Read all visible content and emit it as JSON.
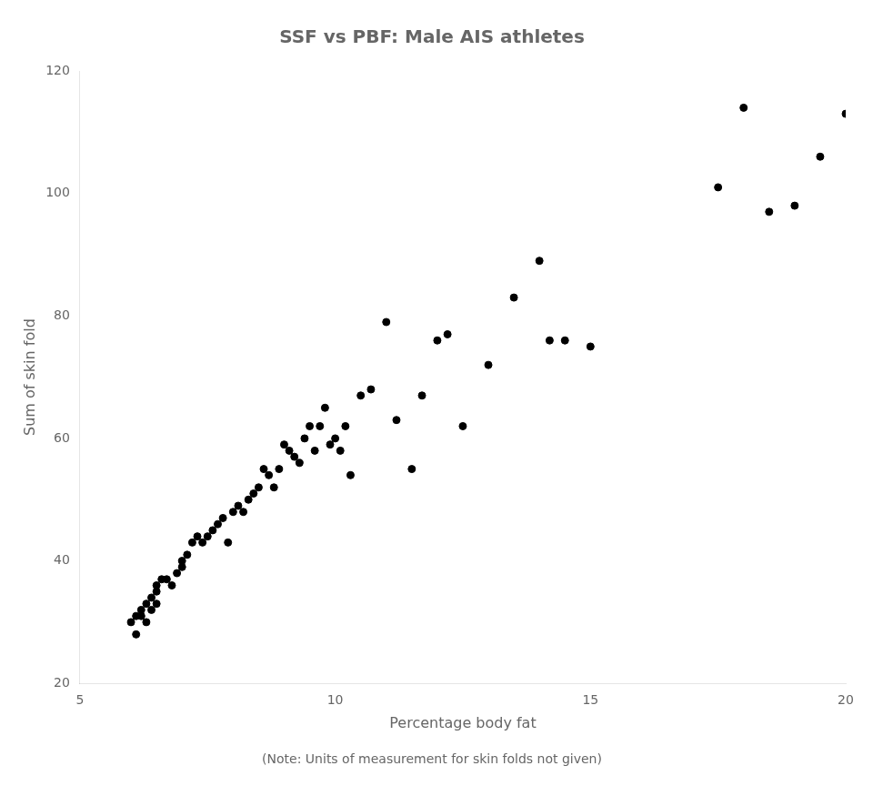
{
  "chart_data": {
    "type": "scatter",
    "title": "SSF vs PBF: Male AIS athletes",
    "xlabel": "Percentage body fat",
    "ylabel": "Sum of skin fold",
    "annotations": [
      "(Note: Units of measurement for skin folds not given)"
    ],
    "x": [
      6.0,
      6.1,
      6.1,
      6.2,
      6.2,
      6.3,
      6.3,
      6.4,
      6.4,
      6.5,
      6.5,
      6.5,
      6.6,
      6.7,
      6.8,
      6.9,
      7.0,
      7.0,
      7.1,
      7.2,
      7.3,
      7.4,
      7.5,
      7.6,
      7.7,
      7.8,
      7.9,
      8.0,
      8.1,
      8.2,
      8.3,
      8.4,
      8.5,
      8.6,
      8.7,
      8.8,
      8.9,
      9.0,
      9.1,
      9.2,
      9.3,
      9.4,
      9.5,
      9.6,
      9.7,
      9.8,
      9.9,
      10.0,
      10.1,
      10.2,
      10.3,
      10.5,
      10.7,
      11.0,
      11.2,
      11.5,
      11.7,
      12.0,
      12.2,
      12.5,
      13.0,
      13.5,
      14.0,
      14.2,
      14.5,
      15.0,
      17.5,
      18.0,
      18.5,
      19.0,
      19.5,
      20.0
    ],
    "values": [
      30,
      31,
      28,
      31,
      32,
      33,
      30,
      34,
      32,
      36,
      35,
      33,
      37,
      37,
      36,
      38,
      39,
      40,
      41,
      43,
      44,
      43,
      44,
      45,
      46,
      47,
      43,
      48,
      49,
      48,
      50,
      51,
      52,
      55,
      54,
      52,
      55,
      59,
      58,
      57,
      56,
      60,
      62,
      58,
      62,
      65,
      59,
      60,
      58,
      62,
      54,
      67,
      68,
      79,
      63,
      55,
      67,
      76,
      77,
      62,
      72,
      83,
      89,
      76,
      76,
      75,
      101,
      114,
      97,
      98,
      106,
      113
    ],
    "color": "black",
    "xlim": [
      5,
      20
    ],
    "ylim": [
      20,
      120
    ],
    "xticks": [
      5,
      10,
      15,
      20
    ],
    "yticks": [
      20,
      40,
      60,
      80,
      100,
      120
    ],
    "grid": false
  }
}
